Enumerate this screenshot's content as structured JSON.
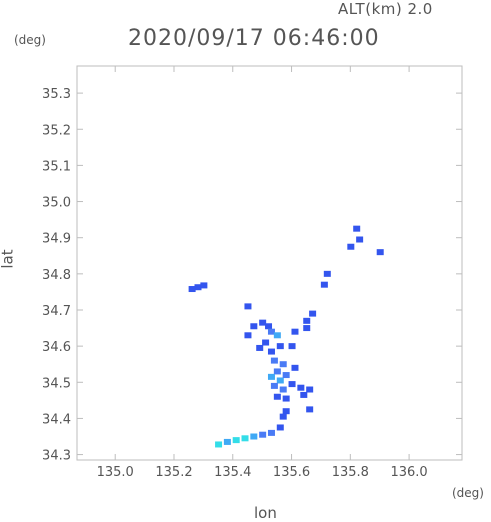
{
  "header": {
    "altitude_label": "ALT(km) 2.0",
    "datetime": "2020/09/17 06:46:00"
  },
  "chart_data": {
    "type": "scatter",
    "xlabel": "lon",
    "ylabel": "lat",
    "x_unit": "(deg)",
    "y_unit": "(deg)",
    "xlim": [
      134.87,
      136.18
    ],
    "ylim": [
      34.285,
      35.375
    ],
    "x_ticks": [
      135.0,
      135.2,
      135.4,
      135.6,
      135.8,
      136.0
    ],
    "y_ticks": [
      34.3,
      34.4,
      34.5,
      34.6,
      34.7,
      34.8,
      34.9,
      35.0,
      35.1,
      35.2,
      35.3
    ],
    "x_tick_labels": [
      "135.0",
      "135.2",
      "135.4",
      "135.6",
      "135.8",
      "136.0"
    ],
    "y_tick_labels": [
      "34.3",
      "34.4",
      "34.5",
      "34.6",
      "34.7",
      "34.8",
      "34.9",
      "35.0",
      "35.1",
      "35.2",
      "35.3"
    ],
    "grid": false,
    "colors": {
      "deep_blue": "#3355ee",
      "mid_blue": "#4a7bf5",
      "light_blue": "#3fa9f5",
      "cyan": "#33dde8"
    },
    "echo_cells": [
      {
        "lon": 135.28,
        "lat": 34.763,
        "c": "deep_blue"
      },
      {
        "lon": 135.3,
        "lat": 34.768,
        "c": "deep_blue"
      },
      {
        "lon": 135.26,
        "lat": 34.758,
        "c": "deep_blue"
      },
      {
        "lon": 135.45,
        "lat": 34.71,
        "c": "deep_blue"
      },
      {
        "lon": 135.47,
        "lat": 34.655,
        "c": "deep_blue"
      },
      {
        "lon": 135.5,
        "lat": 34.665,
        "c": "deep_blue"
      },
      {
        "lon": 135.52,
        "lat": 34.655,
        "c": "deep_blue"
      },
      {
        "lon": 135.53,
        "lat": 34.64,
        "c": "mid_blue"
      },
      {
        "lon": 135.55,
        "lat": 34.63,
        "c": "light_blue"
      },
      {
        "lon": 135.51,
        "lat": 34.61,
        "c": "deep_blue"
      },
      {
        "lon": 135.49,
        "lat": 34.595,
        "c": "deep_blue"
      },
      {
        "lon": 135.53,
        "lat": 34.585,
        "c": "deep_blue"
      },
      {
        "lon": 135.56,
        "lat": 34.6,
        "c": "deep_blue"
      },
      {
        "lon": 135.54,
        "lat": 34.56,
        "c": "mid_blue"
      },
      {
        "lon": 135.57,
        "lat": 34.55,
        "c": "mid_blue"
      },
      {
        "lon": 135.55,
        "lat": 34.53,
        "c": "mid_blue"
      },
      {
        "lon": 135.53,
        "lat": 34.515,
        "c": "light_blue"
      },
      {
        "lon": 135.56,
        "lat": 34.505,
        "c": "light_blue"
      },
      {
        "lon": 135.58,
        "lat": 34.52,
        "c": "mid_blue"
      },
      {
        "lon": 135.54,
        "lat": 34.49,
        "c": "mid_blue"
      },
      {
        "lon": 135.57,
        "lat": 34.48,
        "c": "mid_blue"
      },
      {
        "lon": 135.6,
        "lat": 34.495,
        "c": "deep_blue"
      },
      {
        "lon": 135.55,
        "lat": 34.46,
        "c": "deep_blue"
      },
      {
        "lon": 135.58,
        "lat": 34.455,
        "c": "deep_blue"
      },
      {
        "lon": 135.63,
        "lat": 34.485,
        "c": "deep_blue"
      },
      {
        "lon": 135.66,
        "lat": 34.48,
        "c": "deep_blue"
      },
      {
        "lon": 135.64,
        "lat": 34.465,
        "c": "deep_blue"
      },
      {
        "lon": 135.61,
        "lat": 34.54,
        "c": "deep_blue"
      },
      {
        "lon": 135.6,
        "lat": 34.6,
        "c": "deep_blue"
      },
      {
        "lon": 135.61,
        "lat": 34.64,
        "c": "deep_blue"
      },
      {
        "lon": 135.65,
        "lat": 34.67,
        "c": "deep_blue"
      },
      {
        "lon": 135.67,
        "lat": 34.69,
        "c": "deep_blue"
      },
      {
        "lon": 135.65,
        "lat": 34.65,
        "c": "deep_blue"
      },
      {
        "lon": 135.58,
        "lat": 34.42,
        "c": "deep_blue"
      },
      {
        "lon": 135.57,
        "lat": 34.405,
        "c": "deep_blue"
      },
      {
        "lon": 135.66,
        "lat": 34.425,
        "c": "deep_blue"
      },
      {
        "lon": 135.56,
        "lat": 34.375,
        "c": "deep_blue"
      },
      {
        "lon": 135.53,
        "lat": 34.36,
        "c": "mid_blue"
      },
      {
        "lon": 135.5,
        "lat": 34.355,
        "c": "mid_blue"
      },
      {
        "lon": 135.47,
        "lat": 34.35,
        "c": "light_blue"
      },
      {
        "lon": 135.44,
        "lat": 34.345,
        "c": "cyan"
      },
      {
        "lon": 135.41,
        "lat": 34.34,
        "c": "cyan"
      },
      {
        "lon": 135.38,
        "lat": 34.335,
        "c": "light_blue"
      },
      {
        "lon": 135.35,
        "lat": 34.328,
        "c": "cyan"
      },
      {
        "lon": 135.72,
        "lat": 34.8,
        "c": "deep_blue"
      },
      {
        "lon": 135.71,
        "lat": 34.77,
        "c": "deep_blue"
      },
      {
        "lon": 135.8,
        "lat": 34.875,
        "c": "deep_blue"
      },
      {
        "lon": 135.83,
        "lat": 34.895,
        "c": "deep_blue"
      },
      {
        "lon": 135.82,
        "lat": 34.925,
        "c": "deep_blue"
      },
      {
        "lon": 135.9,
        "lat": 34.86,
        "c": "deep_blue"
      },
      {
        "lon": 135.45,
        "lat": 34.63,
        "c": "deep_blue"
      }
    ]
  }
}
